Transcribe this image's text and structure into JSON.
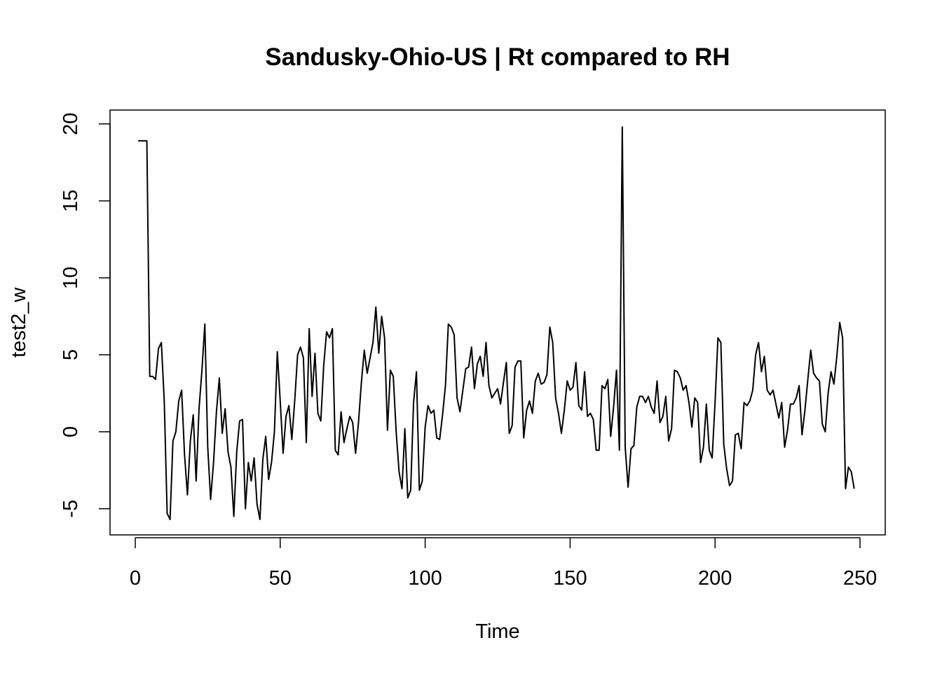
{
  "chart_data": {
    "type": "line",
    "title": "Sandusky-Ohio-US | Rt compared to RH",
    "xlabel": "Time",
    "ylabel": "test2_w",
    "xlim": [
      -8.7,
      258.7
    ],
    "ylim": [
      -6.7,
      20.9
    ],
    "x_ticks": [
      0,
      50,
      100,
      150,
      200,
      250
    ],
    "y_ticks": [
      -5,
      0,
      5,
      10,
      15,
      20
    ],
    "grid": false,
    "series": [
      {
        "x_start": 1,
        "values": [
          18.9,
          18.9,
          18.9,
          18.9,
          3.6,
          3.6,
          3.4,
          5.4,
          5.8,
          2.0,
          -5.3,
          -5.7,
          -0.6,
          0.0,
          2.0,
          2.7,
          -1.5,
          -4.1,
          -0.6,
          1.1,
          -3.2,
          1.5,
          4.0,
          7.0,
          -1.0,
          -4.4,
          -2.0,
          1.3,
          3.5,
          -0.1,
          1.5,
          -1.3,
          -2.3,
          -5.5,
          -1.3,
          0.7,
          0.8,
          -5.0,
          -2.0,
          -3.2,
          -1.7,
          -4.7,
          -5.7,
          -1.8,
          -0.3,
          -3.1,
          -2.0,
          0.0,
          5.2,
          2.0,
          -1.4,
          1.0,
          1.7,
          -0.5,
          2.0,
          5.0,
          5.5,
          4.8,
          -0.7,
          6.7,
          2.3,
          5.1,
          1.2,
          0.7,
          4.3,
          6.5,
          6.1,
          6.7,
          -1.2,
          -1.5,
          1.3,
          -0.7,
          0.2,
          1.0,
          0.6,
          -1.4,
          0.6,
          3.2,
          5.3,
          3.8,
          4.8,
          5.8,
          8.1,
          5.1,
          7.5,
          6.1,
          0.1,
          4.0,
          3.6,
          0.0,
          -2.6,
          -3.7,
          0.2,
          -4.3,
          -3.8,
          1.9,
          3.9,
          -3.8,
          -3.2,
          0.3,
          1.7,
          1.2,
          1.4,
          -0.4,
          -0.5,
          1.1,
          3.0,
          7.0,
          6.8,
          6.3,
          2.2,
          1.3,
          2.7,
          4.1,
          4.2,
          5.5,
          2.8,
          4.4,
          4.9,
          3.6,
          5.8,
          3.0,
          2.2,
          2.5,
          2.8,
          1.8,
          3.2,
          4.5,
          -0.1,
          0.4,
          4.2,
          4.6,
          4.6,
          -0.4,
          1.4,
          2.0,
          1.2,
          3.3,
          3.8,
          3.1,
          3.2,
          3.7,
          6.8,
          5.8,
          2.2,
          1.2,
          -0.1,
          1.4,
          3.3,
          2.7,
          2.9,
          4.5,
          1.7,
          1.4,
          3.9,
          1.0,
          1.2,
          0.8,
          -1.2,
          -1.2,
          3.0,
          2.8,
          3.4,
          -0.3,
          1.6,
          4.0,
          -1.2,
          19.8,
          -1.0,
          -3.6,
          -1.1,
          -0.9,
          1.6,
          2.3,
          2.3,
          1.9,
          2.3,
          1.6,
          1.2,
          3.3,
          0.6,
          1.0,
          2.3,
          -0.6,
          0.2,
          4.0,
          3.9,
          3.5,
          2.7,
          3.0,
          1.9,
          0.3,
          2.2,
          1.9,
          -2.0,
          -1.0,
          1.8,
          -1.2,
          -1.7,
          1.9,
          6.1,
          5.8,
          -0.8,
          -2.4,
          -3.5,
          -3.2,
          -0.2,
          -0.1,
          -1.1,
          1.9,
          1.7,
          2.0,
          2.7,
          5.0,
          5.8,
          3.9,
          4.9,
          2.7,
          2.4,
          2.7,
          1.8,
          0.9,
          1.9,
          -1.0,
          0.1,
          1.8,
          1.8,
          2.2,
          3.0,
          -0.2,
          1.4,
          3.4,
          5.3,
          3.8,
          3.5,
          3.3,
          0.5,
          0.0,
          2.5,
          3.9,
          3.1,
          4.9,
          7.1,
          6.1,
          -3.7,
          -2.3,
          -2.6,
          -3.7
        ]
      }
    ]
  }
}
